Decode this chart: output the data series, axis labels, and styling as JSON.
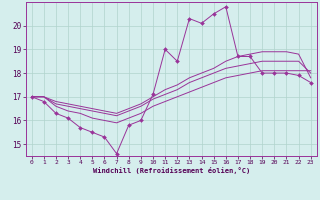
{
  "xlabel": "Windchill (Refroidissement éolien,°C)",
  "ylabel": "",
  "xlim": [
    -0.5,
    23.5
  ],
  "ylim": [
    14.5,
    21.0
  ],
  "yticks": [
    15,
    16,
    17,
    18,
    19,
    20
  ],
  "xticks": [
    0,
    1,
    2,
    3,
    4,
    5,
    6,
    7,
    8,
    9,
    10,
    11,
    12,
    13,
    14,
    15,
    16,
    17,
    18,
    19,
    20,
    21,
    22,
    23
  ],
  "bg_color": "#d5eeed",
  "grid_color": "#b0d4cc",
  "line_color": "#993399",
  "jagged_x": [
    0,
    1,
    2,
    3,
    4,
    5,
    6,
    7,
    8,
    9,
    10,
    11,
    12,
    13,
    14,
    15,
    16,
    17,
    18,
    19,
    20,
    21,
    22,
    23
  ],
  "jagged_y": [
    17.0,
    16.8,
    16.3,
    16.1,
    15.7,
    15.5,
    15.3,
    14.6,
    15.8,
    16.0,
    17.1,
    19.0,
    18.5,
    20.3,
    20.1,
    20.5,
    20.8,
    18.7,
    18.7,
    18.0,
    18.0,
    18.0,
    17.9,
    17.6
  ],
  "smooth1_x": [
    0,
    1,
    2,
    3,
    4,
    5,
    6,
    7,
    8,
    9,
    10,
    11,
    12,
    13,
    14,
    15,
    16,
    17,
    18,
    19,
    20,
    21,
    22,
    23
  ],
  "smooth1_y": [
    17.0,
    17.0,
    16.6,
    16.4,
    16.3,
    16.1,
    16.0,
    15.9,
    16.1,
    16.3,
    16.6,
    16.8,
    17.0,
    17.2,
    17.4,
    17.6,
    17.8,
    17.9,
    18.0,
    18.1,
    18.1,
    18.1,
    18.1,
    18.1
  ],
  "smooth2_x": [
    0,
    1,
    2,
    3,
    4,
    5,
    6,
    7,
    8,
    9,
    10,
    11,
    12,
    13,
    14,
    15,
    16,
    17,
    18,
    19,
    20,
    21,
    22,
    23
  ],
  "smooth2_y": [
    17.0,
    17.0,
    16.7,
    16.6,
    16.5,
    16.4,
    16.3,
    16.2,
    16.4,
    16.6,
    16.9,
    17.1,
    17.3,
    17.6,
    17.8,
    18.0,
    18.2,
    18.3,
    18.4,
    18.5,
    18.5,
    18.5,
    18.5,
    18.0
  ],
  "smooth3_x": [
    0,
    1,
    2,
    3,
    4,
    5,
    6,
    7,
    8,
    9,
    10,
    11,
    12,
    13,
    14,
    15,
    16,
    17,
    18,
    19,
    20,
    21,
    22,
    23
  ],
  "smooth3_y": [
    17.0,
    17.0,
    16.8,
    16.7,
    16.6,
    16.5,
    16.4,
    16.3,
    16.5,
    16.7,
    17.0,
    17.3,
    17.5,
    17.8,
    18.0,
    18.2,
    18.5,
    18.7,
    18.8,
    18.9,
    18.9,
    18.9,
    18.8,
    17.8
  ]
}
